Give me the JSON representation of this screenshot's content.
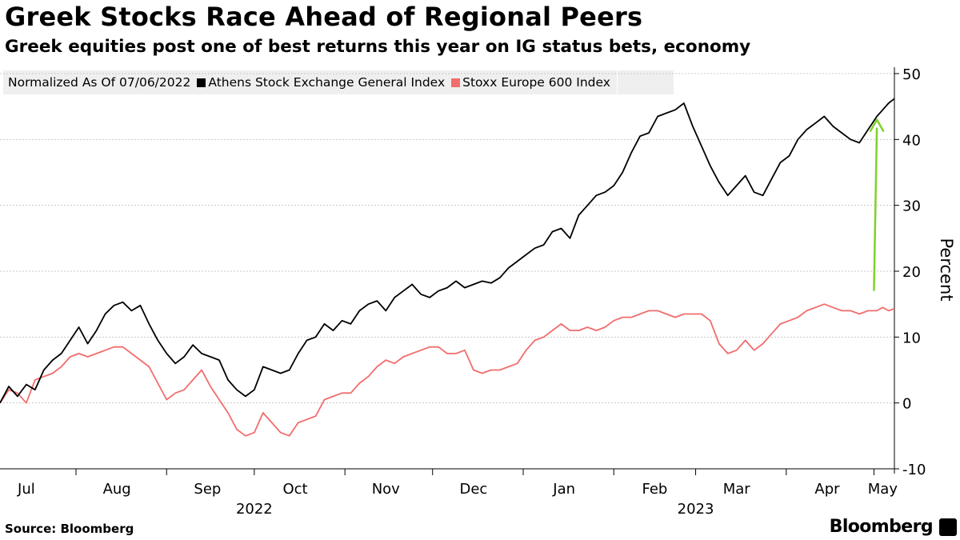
{
  "title": "Greek Stocks Race Ahead of Regional Peers",
  "subtitle": "Greek equities post one of best returns this year on IG status bets, economy",
  "legend": {
    "note": "Normalized As Of 07/06/2022",
    "series1": "Athens Stock Exchange General Index",
    "series2": "Stoxx Europe 600 Index"
  },
  "source": "Source: Bloomberg",
  "brand": "Bloomberg",
  "colors": {
    "athens": "#000000",
    "stoxx": "#f26d6d",
    "arrow": "#7fd12a",
    "grid": "#c8c8c8"
  },
  "chart_data": {
    "type": "line",
    "ylabel": "Percent",
    "ylim": [
      -10,
      50
    ],
    "yticks": [
      -10,
      0,
      10,
      20,
      30,
      40,
      50
    ],
    "xlim": [
      "2022-07-06",
      "2023-05-08"
    ],
    "month_ticks": [
      {
        "label": "Jul",
        "date": "2022-07-15"
      },
      {
        "label": "Aug",
        "date": "2022-08-15"
      },
      {
        "label": "Sep",
        "date": "2022-09-15"
      },
      {
        "label": "Oct",
        "date": "2022-10-15"
      },
      {
        "label": "Nov",
        "date": "2022-11-15"
      },
      {
        "label": "Dec",
        "date": "2022-12-15"
      },
      {
        "label": "Jan",
        "date": "2023-01-15"
      },
      {
        "label": "Feb",
        "date": "2023-02-15"
      },
      {
        "label": "Mar",
        "date": "2023-03-15"
      },
      {
        "label": "Apr",
        "date": "2023-04-15"
      },
      {
        "label": "May",
        "date": "2023-05-04"
      }
    ],
    "month_boundaries": [
      "2022-08-01",
      "2022-09-01",
      "2022-10-01",
      "2022-11-01",
      "2022-12-01",
      "2023-01-01",
      "2023-02-01",
      "2023-03-01",
      "2023-04-01",
      "2023-05-01"
    ],
    "year_labels": [
      {
        "label": "2022",
        "date": "2022-10-01"
      },
      {
        "label": "2023",
        "date": "2023-03-01"
      }
    ],
    "grid": true,
    "legend_position": "top-left",
    "annotation": {
      "type": "arrow",
      "from": [
        "2023-05-01",
        17
      ],
      "to": [
        "2023-05-02",
        43
      ]
    },
    "series": [
      {
        "name": "Athens Stock Exchange General Index",
        "points": [
          [
            "2022-07-06",
            0.0
          ],
          [
            "2022-07-09",
            2.5
          ],
          [
            "2022-07-12",
            1.0
          ],
          [
            "2022-07-15",
            2.8
          ],
          [
            "2022-07-18",
            2.0
          ],
          [
            "2022-07-21",
            5.0
          ],
          [
            "2022-07-24",
            6.5
          ],
          [
            "2022-07-27",
            7.5
          ],
          [
            "2022-07-30",
            9.5
          ],
          [
            "2022-08-02",
            11.5
          ],
          [
            "2022-08-05",
            9.0
          ],
          [
            "2022-08-08",
            11.0
          ],
          [
            "2022-08-11",
            13.5
          ],
          [
            "2022-08-14",
            14.8
          ],
          [
            "2022-08-17",
            15.3
          ],
          [
            "2022-08-20",
            14.0
          ],
          [
            "2022-08-23",
            14.8
          ],
          [
            "2022-08-26",
            12.0
          ],
          [
            "2022-08-29",
            9.5
          ],
          [
            "2022-09-01",
            7.5
          ],
          [
            "2022-09-04",
            6.0
          ],
          [
            "2022-09-07",
            7.0
          ],
          [
            "2022-09-10",
            8.8
          ],
          [
            "2022-09-13",
            7.5
          ],
          [
            "2022-09-16",
            7.0
          ],
          [
            "2022-09-19",
            6.5
          ],
          [
            "2022-09-22",
            3.5
          ],
          [
            "2022-09-25",
            2.0
          ],
          [
            "2022-09-28",
            1.0
          ],
          [
            "2022-10-01",
            2.0
          ],
          [
            "2022-10-04",
            5.5
          ],
          [
            "2022-10-07",
            5.0
          ],
          [
            "2022-10-10",
            4.5
          ],
          [
            "2022-10-13",
            5.0
          ],
          [
            "2022-10-16",
            7.5
          ],
          [
            "2022-10-19",
            9.5
          ],
          [
            "2022-10-22",
            10.0
          ],
          [
            "2022-10-25",
            12.0
          ],
          [
            "2022-10-28",
            11.0
          ],
          [
            "2022-10-31",
            12.5
          ],
          [
            "2022-11-03",
            12.0
          ],
          [
            "2022-11-06",
            14.0
          ],
          [
            "2022-11-09",
            15.0
          ],
          [
            "2022-11-12",
            15.5
          ],
          [
            "2022-11-15",
            14.0
          ],
          [
            "2022-11-18",
            16.0
          ],
          [
            "2022-11-21",
            17.0
          ],
          [
            "2022-11-24",
            18.0
          ],
          [
            "2022-11-27",
            16.5
          ],
          [
            "2022-11-30",
            16.0
          ],
          [
            "2022-12-03",
            17.0
          ],
          [
            "2022-12-06",
            17.5
          ],
          [
            "2022-12-09",
            18.5
          ],
          [
            "2022-12-12",
            17.5
          ],
          [
            "2022-12-15",
            18.0
          ],
          [
            "2022-12-18",
            18.5
          ],
          [
            "2022-12-21",
            18.2
          ],
          [
            "2022-12-24",
            19.0
          ],
          [
            "2022-12-27",
            20.5
          ],
          [
            "2022-12-30",
            21.5
          ],
          [
            "2023-01-02",
            22.5
          ],
          [
            "2023-01-05",
            23.5
          ],
          [
            "2023-01-08",
            24.0
          ],
          [
            "2023-01-11",
            26.0
          ],
          [
            "2023-01-14",
            26.5
          ],
          [
            "2023-01-17",
            25.0
          ],
          [
            "2023-01-20",
            28.5
          ],
          [
            "2023-01-23",
            30.0
          ],
          [
            "2023-01-26",
            31.5
          ],
          [
            "2023-01-29",
            32.0
          ],
          [
            "2023-02-01",
            33.0
          ],
          [
            "2023-02-04",
            35.0
          ],
          [
            "2023-02-07",
            38.0
          ],
          [
            "2023-02-10",
            40.5
          ],
          [
            "2023-02-13",
            41.0
          ],
          [
            "2023-02-16",
            43.5
          ],
          [
            "2023-02-19",
            44.0
          ],
          [
            "2023-02-22",
            44.5
          ],
          [
            "2023-02-25",
            45.5
          ],
          [
            "2023-02-28",
            42.0
          ],
          [
            "2023-03-03",
            39.0
          ],
          [
            "2023-03-06",
            36.0
          ],
          [
            "2023-03-09",
            33.5
          ],
          [
            "2023-03-12",
            31.5
          ],
          [
            "2023-03-15",
            33.0
          ],
          [
            "2023-03-18",
            34.5
          ],
          [
            "2023-03-21",
            32.0
          ],
          [
            "2023-03-24",
            31.5
          ],
          [
            "2023-03-27",
            34.0
          ],
          [
            "2023-03-30",
            36.5
          ],
          [
            "2023-04-02",
            37.5
          ],
          [
            "2023-04-05",
            40.0
          ],
          [
            "2023-04-08",
            41.5
          ],
          [
            "2023-04-11",
            42.5
          ],
          [
            "2023-04-14",
            43.5
          ],
          [
            "2023-04-17",
            42.0
          ],
          [
            "2023-04-20",
            41.0
          ],
          [
            "2023-04-23",
            40.0
          ],
          [
            "2023-04-26",
            39.5
          ],
          [
            "2023-04-29",
            41.5
          ],
          [
            "2023-05-02",
            43.5
          ],
          [
            "2023-05-04",
            44.5
          ],
          [
            "2023-05-06",
            45.5
          ],
          [
            "2023-05-08",
            46.2
          ]
        ]
      },
      {
        "name": "Stoxx Europe 600 Index",
        "points": [
          [
            "2022-07-06",
            0.0
          ],
          [
            "2022-07-09",
            2.0
          ],
          [
            "2022-07-12",
            1.5
          ],
          [
            "2022-07-15",
            0.0
          ],
          [
            "2022-07-18",
            3.5
          ],
          [
            "2022-07-21",
            4.0
          ],
          [
            "2022-07-24",
            4.5
          ],
          [
            "2022-07-27",
            5.5
          ],
          [
            "2022-07-30",
            7.0
          ],
          [
            "2022-08-02",
            7.5
          ],
          [
            "2022-08-05",
            7.0
          ],
          [
            "2022-08-08",
            7.5
          ],
          [
            "2022-08-11",
            8.0
          ],
          [
            "2022-08-14",
            8.5
          ],
          [
            "2022-08-17",
            8.5
          ],
          [
            "2022-08-20",
            7.5
          ],
          [
            "2022-08-23",
            6.5
          ],
          [
            "2022-08-26",
            5.5
          ],
          [
            "2022-08-29",
            3.0
          ],
          [
            "2022-09-01",
            0.5
          ],
          [
            "2022-09-04",
            1.5
          ],
          [
            "2022-09-07",
            2.0
          ],
          [
            "2022-09-10",
            3.5
          ],
          [
            "2022-09-13",
            5.0
          ],
          [
            "2022-09-16",
            2.5
          ],
          [
            "2022-09-19",
            0.5
          ],
          [
            "2022-09-22",
            -1.5
          ],
          [
            "2022-09-25",
            -4.0
          ],
          [
            "2022-09-28",
            -5.0
          ],
          [
            "2022-10-01",
            -4.5
          ],
          [
            "2022-10-04",
            -1.5
          ],
          [
            "2022-10-07",
            -3.0
          ],
          [
            "2022-10-10",
            -4.5
          ],
          [
            "2022-10-13",
            -5.0
          ],
          [
            "2022-10-16",
            -3.0
          ],
          [
            "2022-10-19",
            -2.5
          ],
          [
            "2022-10-22",
            -2.0
          ],
          [
            "2022-10-25",
            0.5
          ],
          [
            "2022-10-28",
            1.0
          ],
          [
            "2022-10-31",
            1.5
          ],
          [
            "2022-11-03",
            1.5
          ],
          [
            "2022-11-06",
            3.0
          ],
          [
            "2022-11-09",
            4.0
          ],
          [
            "2022-11-12",
            5.5
          ],
          [
            "2022-11-15",
            6.5
          ],
          [
            "2022-11-18",
            6.0
          ],
          [
            "2022-11-21",
            7.0
          ],
          [
            "2022-11-24",
            7.5
          ],
          [
            "2022-11-27",
            8.0
          ],
          [
            "2022-11-30",
            8.5
          ],
          [
            "2022-12-03",
            8.5
          ],
          [
            "2022-12-06",
            7.5
          ],
          [
            "2022-12-09",
            7.5
          ],
          [
            "2022-12-12",
            8.0
          ],
          [
            "2022-12-15",
            5.0
          ],
          [
            "2022-12-18",
            4.5
          ],
          [
            "2022-12-21",
            5.0
          ],
          [
            "2022-12-24",
            5.0
          ],
          [
            "2022-12-27",
            5.5
          ],
          [
            "2022-12-30",
            6.0
          ],
          [
            "2023-01-02",
            8.0
          ],
          [
            "2023-01-05",
            9.5
          ],
          [
            "2023-01-08",
            10.0
          ],
          [
            "2023-01-11",
            11.0
          ],
          [
            "2023-01-14",
            12.0
          ],
          [
            "2023-01-17",
            11.0
          ],
          [
            "2023-01-20",
            11.0
          ],
          [
            "2023-01-23",
            11.5
          ],
          [
            "2023-01-26",
            11.0
          ],
          [
            "2023-01-29",
            11.5
          ],
          [
            "2023-02-01",
            12.5
          ],
          [
            "2023-02-04",
            13.0
          ],
          [
            "2023-02-07",
            13.0
          ],
          [
            "2023-02-10",
            13.5
          ],
          [
            "2023-02-13",
            14.0
          ],
          [
            "2023-02-16",
            14.0
          ],
          [
            "2023-02-19",
            13.5
          ],
          [
            "2023-02-22",
            13.0
          ],
          [
            "2023-02-25",
            13.5
          ],
          [
            "2023-02-28",
            13.5
          ],
          [
            "2023-03-03",
            13.5
          ],
          [
            "2023-03-06",
            12.5
          ],
          [
            "2023-03-09",
            9.0
          ],
          [
            "2023-03-12",
            7.5
          ],
          [
            "2023-03-15",
            8.0
          ],
          [
            "2023-03-18",
            9.5
          ],
          [
            "2023-03-21",
            8.0
          ],
          [
            "2023-03-24",
            9.0
          ],
          [
            "2023-03-27",
            10.5
          ],
          [
            "2023-03-30",
            12.0
          ],
          [
            "2023-04-02",
            12.5
          ],
          [
            "2023-04-05",
            13.0
          ],
          [
            "2023-04-08",
            14.0
          ],
          [
            "2023-04-11",
            14.5
          ],
          [
            "2023-04-14",
            15.0
          ],
          [
            "2023-04-17",
            14.5
          ],
          [
            "2023-04-20",
            14.0
          ],
          [
            "2023-04-23",
            14.0
          ],
          [
            "2023-04-26",
            13.5
          ],
          [
            "2023-04-29",
            14.0
          ],
          [
            "2023-05-02",
            14.0
          ],
          [
            "2023-05-04",
            14.5
          ],
          [
            "2023-05-06",
            14.0
          ],
          [
            "2023-05-08",
            14.3
          ]
        ]
      }
    ]
  }
}
